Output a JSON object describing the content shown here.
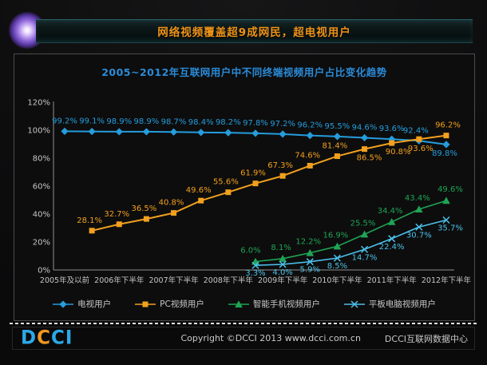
{
  "header": {
    "banner_title": "网络视频覆盖超9成网民，超电视用户"
  },
  "chart_data": {
    "type": "line",
    "title": "2005~2012年互联网用户中不同终端视频用户占比变化趋势",
    "x_tick_labels": [
      "2005年及以前",
      "2006年下半年",
      "2007年下半年",
      "2008年下半年",
      "2009年下半年",
      "2010年下半年",
      "2011年下半年",
      "2012年下半年"
    ],
    "x_slots": 15,
    "y_axis": {
      "min": 0,
      "max": 120,
      "step": 20,
      "unit": "%"
    },
    "ylim": [
      0,
      120
    ],
    "grid": false,
    "legend_position": "bottom",
    "colors": {
      "axis": "#8f8f8f",
      "tick_text": "#c6c6c6"
    },
    "series": [
      {
        "name": "电视用户",
        "marker": "diamond",
        "color": "#259cdb",
        "start_index": 0,
        "values": [
          99.2,
          99.1,
          98.9,
          98.9,
          98.7,
          98.4,
          98.2,
          97.8,
          97.2,
          96.2,
          95.5,
          94.6,
          93.6,
          92.4,
          89.8
        ]
      },
      {
        "name": "PC视频用户",
        "marker": "square",
        "color": "#f2a01e",
        "start_index": 1,
        "values": [
          28.1,
          32.7,
          36.5,
          40.8,
          49.6,
          55.6,
          61.9,
          67.3,
          74.6,
          81.4,
          86.5,
          90.8,
          93.6,
          96.2
        ]
      },
      {
        "name": "智能手机视频用户",
        "marker": "triangle",
        "color": "#1fa455",
        "start_index": 7,
        "values": [
          6.0,
          8.1,
          12.2,
          16.9,
          25.5,
          34.4,
          43.4,
          49.6
        ]
      },
      {
        "name": "平板电脑视频用户",
        "marker": "x",
        "color": "#4cc0ea",
        "start_index": 7,
        "values": [
          3.3,
          4.0,
          5.9,
          8.5,
          14.7,
          22.4,
          30.7,
          35.7
        ]
      }
    ]
  },
  "footer": {
    "logo_letters": [
      {
        "char": "D",
        "color": "#2ba9e8"
      },
      {
        "char": "C",
        "color": "#f2981f"
      },
      {
        "char": "C",
        "color": "#2ba9e8"
      },
      {
        "char": "I",
        "color": "#2ba9e8"
      }
    ],
    "copyright": "Copyright ©DCCI 2013 www.dcci.com.cn",
    "org": "DCCI互联网数据中心"
  }
}
